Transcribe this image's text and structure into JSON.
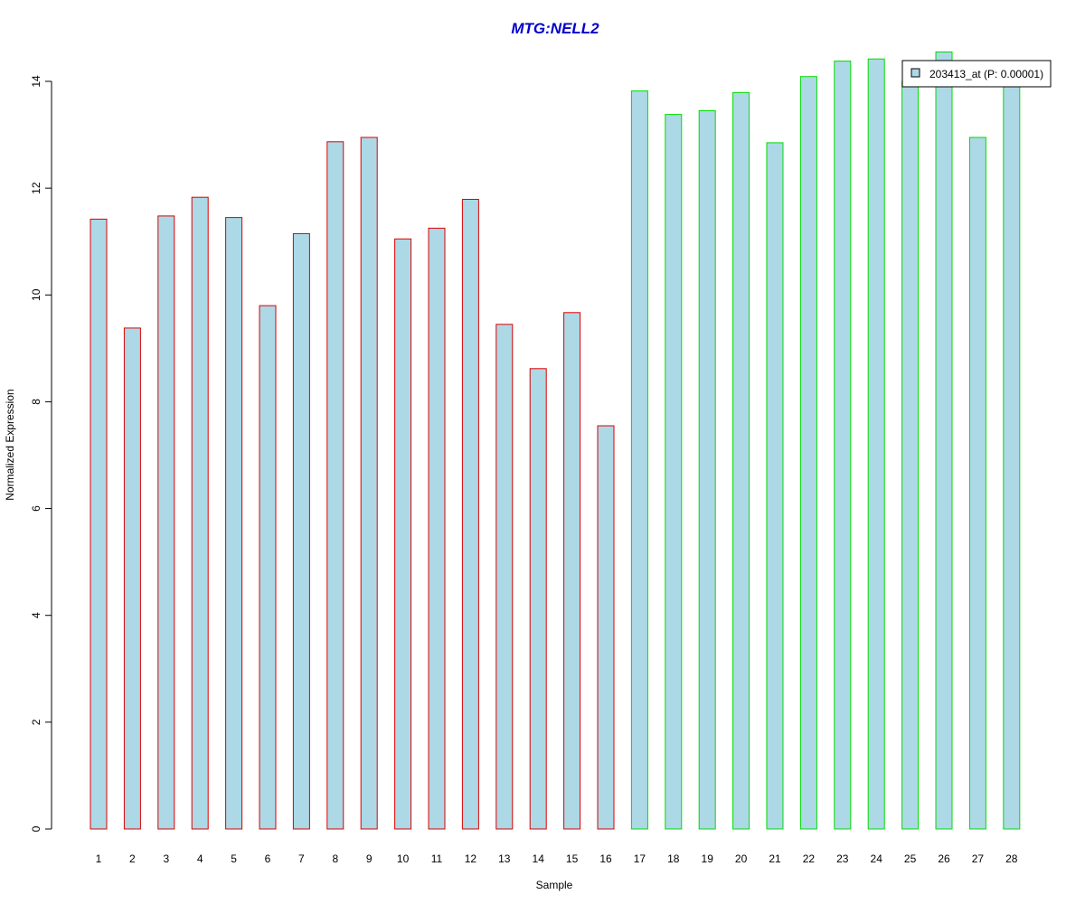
{
  "chart_data": {
    "type": "bar",
    "title": "MTG:NELL2",
    "xlabel": "Sample",
    "ylabel": "Normalized Expression",
    "ylim": [
      0,
      14
    ],
    "yticks": [
      0,
      2,
      4,
      6,
      8,
      10,
      12,
      14
    ],
    "categories": [
      "1",
      "2",
      "3",
      "4",
      "5",
      "6",
      "7",
      "8",
      "9",
      "10",
      "11",
      "12",
      "13",
      "14",
      "15",
      "16",
      "17",
      "18",
      "19",
      "20",
      "21",
      "22",
      "23",
      "24",
      "25",
      "26",
      "27",
      "28"
    ],
    "series": [
      {
        "name": "203413_at (P: 0.00001)",
        "values": [
          11.42,
          9.38,
          11.48,
          11.83,
          11.45,
          9.8,
          11.15,
          12.87,
          12.95,
          11.05,
          11.25,
          11.79,
          9.45,
          8.62,
          9.67,
          7.55,
          13.82,
          13.38,
          13.45,
          13.79,
          12.85,
          14.09,
          14.38,
          14.42,
          14.0,
          14.55,
          12.95,
          14.0
        ]
      }
    ],
    "group_border_colors": [
      "#dd0000",
      "#dd0000",
      "#dd0000",
      "#dd0000",
      "#dd0000",
      "#dd0000",
      "#dd0000",
      "#dd0000",
      "#dd0000",
      "#dd0000",
      "#dd0000",
      "#dd0000",
      "#dd0000",
      "#dd0000",
      "#dd0000",
      "#dd0000",
      "#00dd00",
      "#00dd00",
      "#00dd00",
      "#00dd00",
      "#00dd00",
      "#00dd00",
      "#00dd00",
      "#00dd00",
      "#00dd00",
      "#00dd00",
      "#00dd00",
      "#00dd00"
    ],
    "bar_fill_color": "#add8e6",
    "title_color": "#0000cc",
    "legend_position": "top-right",
    "grid": false
  }
}
